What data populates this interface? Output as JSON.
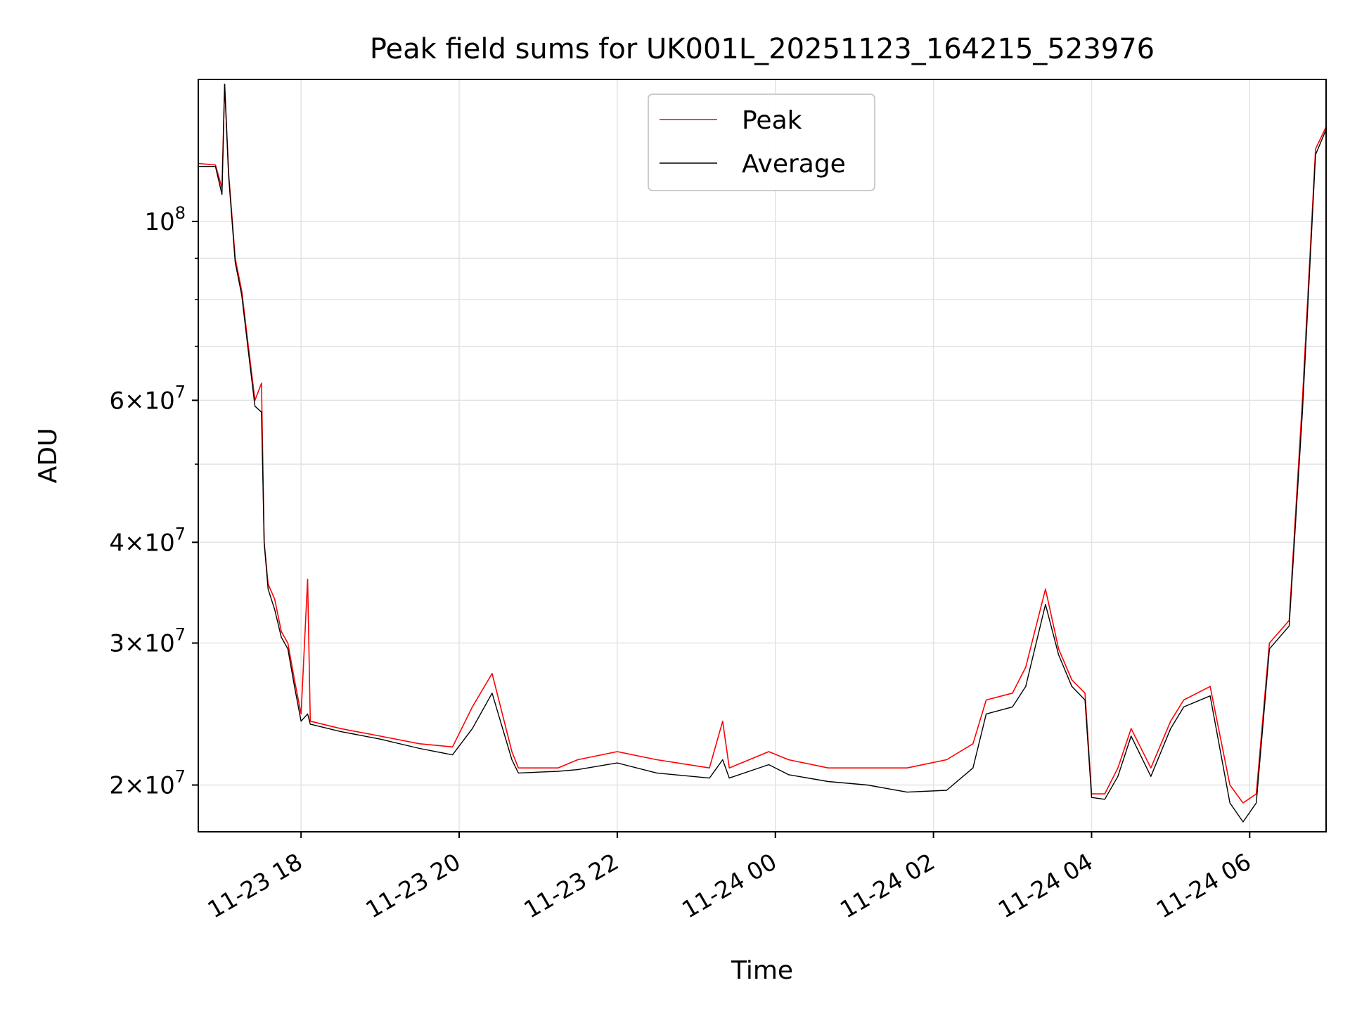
{
  "chart_data": {
    "type": "line",
    "title": "Peak field sums for UK001L_20251123_164215_523976",
    "xlabel": "Time",
    "ylabel": "ADU",
    "xlim": [
      "2025-11-23T16:42",
      "2025-11-24T06:58"
    ],
    "ylim": [
      17500000,
      150000000
    ],
    "yscale": "log",
    "grid": true,
    "legend_position": "upper center",
    "x_ticks": [
      {
        "t": "2025-11-23T18:00",
        "label": "11-23 18"
      },
      {
        "t": "2025-11-23T20:00",
        "label": "11-23 20"
      },
      {
        "t": "2025-11-23T22:00",
        "label": "11-23 22"
      },
      {
        "t": "2025-11-24T00:00",
        "label": "11-24 00"
      },
      {
        "t": "2025-11-24T02:00",
        "label": "11-24 02"
      },
      {
        "t": "2025-11-24T04:00",
        "label": "11-24 04"
      },
      {
        "t": "2025-11-24T06:00",
        "label": "11-24 06"
      }
    ],
    "y_ticks_major": [
      {
        "value": 20000000,
        "mant": "2",
        "exp": "7"
      },
      {
        "value": 30000000,
        "mant": "3",
        "exp": "7"
      },
      {
        "value": 40000000,
        "mant": "4",
        "exp": "7"
      },
      {
        "value": 60000000,
        "mant": "6",
        "exp": "7"
      },
      {
        "value": 100000000,
        "mant": "",
        "exp": "8"
      }
    ],
    "y_ticks_minor": [
      50000000,
      70000000,
      80000000,
      90000000
    ],
    "series": [
      {
        "name": "Peak",
        "color": "#ff0000",
        "points": [
          [
            "2025-11-23T16:42",
            118000000
          ],
          [
            "2025-11-23T16:55",
            117500000
          ],
          [
            "2025-11-23T17:00",
            110000000
          ],
          [
            "2025-11-23T17:02",
            148000000
          ],
          [
            "2025-11-23T17:05",
            115000000
          ],
          [
            "2025-11-23T17:10",
            90000000
          ],
          [
            "2025-11-23T17:15",
            82000000
          ],
          [
            "2025-11-23T17:20",
            70000000
          ],
          [
            "2025-11-23T17:25",
            60000000
          ],
          [
            "2025-11-23T17:30",
            63000000
          ],
          [
            "2025-11-23T17:32",
            40000000
          ],
          [
            "2025-11-23T17:35",
            35500000
          ],
          [
            "2025-11-23T17:40",
            34000000
          ],
          [
            "2025-11-23T17:45",
            31000000
          ],
          [
            "2025-11-23T17:50",
            30000000
          ],
          [
            "2025-11-23T17:55",
            27000000
          ],
          [
            "2025-11-23T18:00",
            24500000
          ],
          [
            "2025-11-23T18:05",
            36000000
          ],
          [
            "2025-11-23T18:07",
            24000000
          ],
          [
            "2025-11-23T18:30",
            23500000
          ],
          [
            "2025-11-23T19:00",
            23000000
          ],
          [
            "2025-11-23T19:30",
            22500000
          ],
          [
            "2025-11-23T19:55",
            22300000
          ],
          [
            "2025-11-23T20:10",
            25000000
          ],
          [
            "2025-11-23T20:25",
            27500000
          ],
          [
            "2025-11-23T20:40",
            22000000
          ],
          [
            "2025-11-23T20:45",
            21000000
          ],
          [
            "2025-11-23T21:15",
            21000000
          ],
          [
            "2025-11-23T21:30",
            21500000
          ],
          [
            "2025-11-23T22:00",
            22000000
          ],
          [
            "2025-11-23T22:30",
            21500000
          ],
          [
            "2025-11-23T23:10",
            21000000
          ],
          [
            "2025-11-23T23:20",
            24000000
          ],
          [
            "2025-11-23T23:25",
            21000000
          ],
          [
            "2025-11-23T23:55",
            22000000
          ],
          [
            "2025-11-24T00:10",
            21500000
          ],
          [
            "2025-11-24T00:40",
            21000000
          ],
          [
            "2025-11-24T01:10",
            21000000
          ],
          [
            "2025-11-24T01:40",
            21000000
          ],
          [
            "2025-11-24T02:10",
            21500000
          ],
          [
            "2025-11-24T02:30",
            22500000
          ],
          [
            "2025-11-24T02:40",
            25500000
          ],
          [
            "2025-11-24T03:00",
            26000000
          ],
          [
            "2025-11-24T03:10",
            28000000
          ],
          [
            "2025-11-24T03:25",
            35000000
          ],
          [
            "2025-11-24T03:35",
            29500000
          ],
          [
            "2025-11-24T03:45",
            27000000
          ],
          [
            "2025-11-24T03:55",
            26000000
          ],
          [
            "2025-11-24T04:00",
            19500000
          ],
          [
            "2025-11-24T04:10",
            19500000
          ],
          [
            "2025-11-24T04:20",
            21000000
          ],
          [
            "2025-11-24T04:30",
            23500000
          ],
          [
            "2025-11-24T04:45",
            21000000
          ],
          [
            "2025-11-24T05:00",
            24000000
          ],
          [
            "2025-11-24T05:10",
            25500000
          ],
          [
            "2025-11-24T05:30",
            26500000
          ],
          [
            "2025-11-24T05:45",
            20000000
          ],
          [
            "2025-11-24T05:55",
            19000000
          ],
          [
            "2025-11-24T06:05",
            19500000
          ],
          [
            "2025-11-24T06:15",
            30000000
          ],
          [
            "2025-11-24T06:30",
            32000000
          ],
          [
            "2025-11-24T06:40",
            60000000
          ],
          [
            "2025-11-24T06:50",
            123000000
          ],
          [
            "2025-11-24T06:58",
            131000000
          ]
        ]
      },
      {
        "name": "Average",
        "color": "#000000",
        "points": [
          [
            "2025-11-23T16:42",
            117000000
          ],
          [
            "2025-11-23T16:55",
            117000000
          ],
          [
            "2025-11-23T17:00",
            108000000
          ],
          [
            "2025-11-23T17:02",
            148000000
          ],
          [
            "2025-11-23T17:05",
            114000000
          ],
          [
            "2025-11-23T17:10",
            89000000
          ],
          [
            "2025-11-23T17:15",
            81000000
          ],
          [
            "2025-11-23T17:20",
            69000000
          ],
          [
            "2025-11-23T17:25",
            59000000
          ],
          [
            "2025-11-23T17:30",
            58000000
          ],
          [
            "2025-11-23T17:32",
            40000000
          ],
          [
            "2025-11-23T17:35",
            35000000
          ],
          [
            "2025-11-23T17:40",
            33000000
          ],
          [
            "2025-11-23T17:45",
            30500000
          ],
          [
            "2025-11-23T17:50",
            29500000
          ],
          [
            "2025-11-23T17:55",
            26500000
          ],
          [
            "2025-11-23T18:00",
            24000000
          ],
          [
            "2025-11-23T18:05",
            24500000
          ],
          [
            "2025-11-23T18:07",
            23800000
          ],
          [
            "2025-11-23T18:30",
            23300000
          ],
          [
            "2025-11-23T19:00",
            22800000
          ],
          [
            "2025-11-23T19:30",
            22200000
          ],
          [
            "2025-11-23T19:55",
            21800000
          ],
          [
            "2025-11-23T20:10",
            23500000
          ],
          [
            "2025-11-23T20:25",
            26000000
          ],
          [
            "2025-11-23T20:40",
            21500000
          ],
          [
            "2025-11-23T20:45",
            20700000
          ],
          [
            "2025-11-23T21:15",
            20800000
          ],
          [
            "2025-11-23T21:30",
            20900000
          ],
          [
            "2025-11-23T22:00",
            21300000
          ],
          [
            "2025-11-23T22:30",
            20700000
          ],
          [
            "2025-11-23T23:10",
            20400000
          ],
          [
            "2025-11-23T23:20",
            21500000
          ],
          [
            "2025-11-23T23:25",
            20400000
          ],
          [
            "2025-11-23T23:55",
            21200000
          ],
          [
            "2025-11-24T00:10",
            20600000
          ],
          [
            "2025-11-24T00:40",
            20200000
          ],
          [
            "2025-11-24T01:10",
            20000000
          ],
          [
            "2025-11-24T01:40",
            19600000
          ],
          [
            "2025-11-24T02:10",
            19700000
          ],
          [
            "2025-11-24T02:30",
            21000000
          ],
          [
            "2025-11-24T02:40",
            24500000
          ],
          [
            "2025-11-24T03:00",
            25000000
          ],
          [
            "2025-11-24T03:10",
            26500000
          ],
          [
            "2025-11-24T03:25",
            33500000
          ],
          [
            "2025-11-24T03:35",
            29000000
          ],
          [
            "2025-11-24T03:45",
            26500000
          ],
          [
            "2025-11-24T03:55",
            25500000
          ],
          [
            "2025-11-24T04:00",
            19300000
          ],
          [
            "2025-11-24T04:10",
            19200000
          ],
          [
            "2025-11-24T04:20",
            20500000
          ],
          [
            "2025-11-24T04:30",
            23000000
          ],
          [
            "2025-11-24T04:45",
            20500000
          ],
          [
            "2025-11-24T05:00",
            23500000
          ],
          [
            "2025-11-24T05:10",
            25000000
          ],
          [
            "2025-11-24T05:30",
            25800000
          ],
          [
            "2025-11-24T05:45",
            19000000
          ],
          [
            "2025-11-24T05:55",
            18000000
          ],
          [
            "2025-11-24T06:05",
            19000000
          ],
          [
            "2025-11-24T06:15",
            29500000
          ],
          [
            "2025-11-24T06:30",
            31500000
          ],
          [
            "2025-11-24T06:40",
            58000000
          ],
          [
            "2025-11-24T06:50",
            121000000
          ],
          [
            "2025-11-24T06:58",
            130000000
          ]
        ]
      }
    ]
  }
}
